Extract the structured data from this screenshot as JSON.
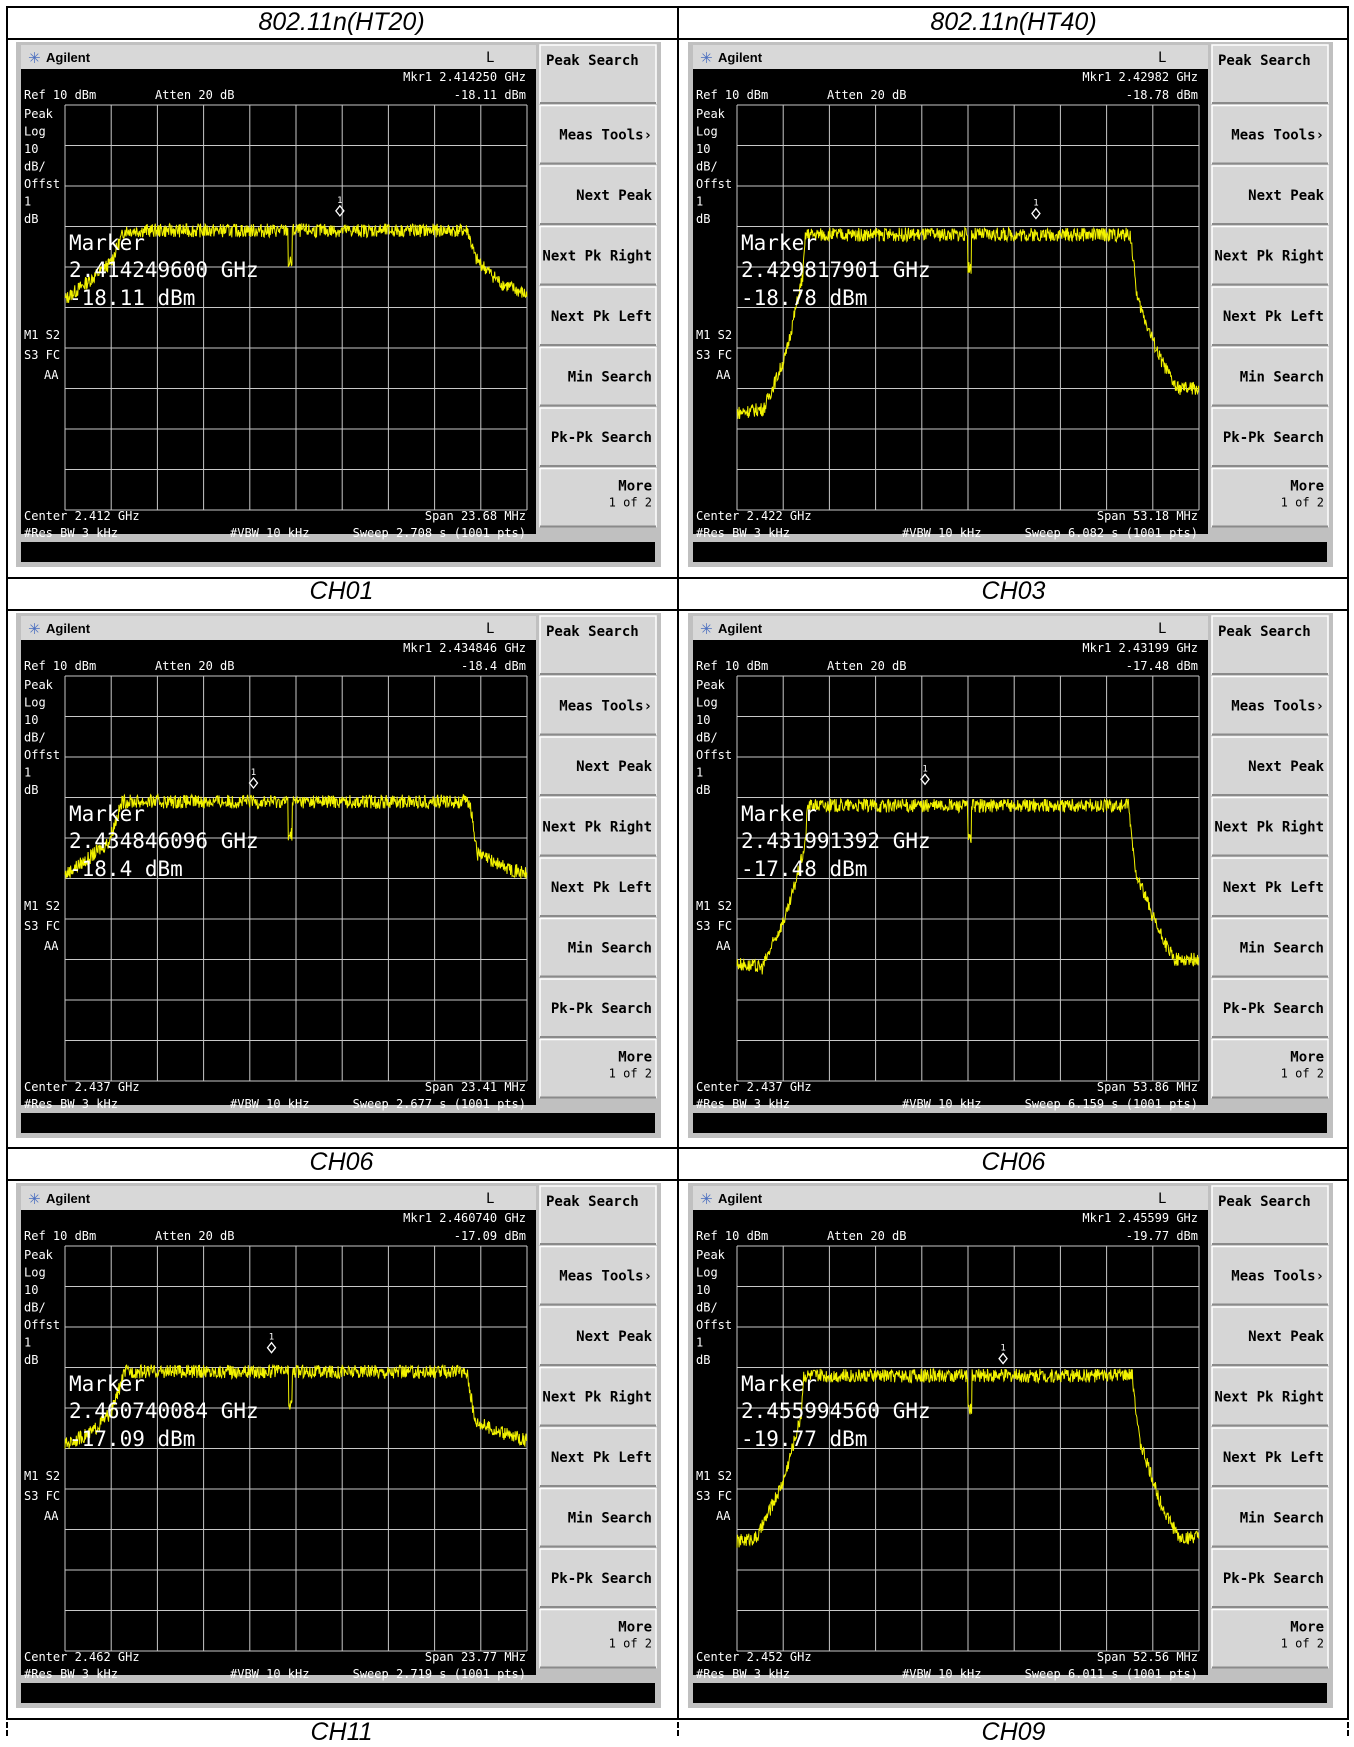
{
  "headers": [
    "802.11n(HT20)",
    "802.11n(HT40)"
  ],
  "panels": [
    {
      "brand": "Agilent",
      "l_flag": "L",
      "mkr_line1": "Mkr1  2.414250 GHz",
      "mkr_line2": "-18.11 dBm",
      "ref": "Ref 10 dBm",
      "atten": "Atten 20 dB",
      "left_labels": [
        "Peak",
        "Log",
        "10",
        "dB/",
        "Offst",
        "1",
        "dB"
      ],
      "mode_labels": [
        "M1  S2",
        "S3  FC",
        "AA"
      ],
      "marker_title": "Marker",
      "marker_freq": "2.414249600 GHz",
      "marker_level": "-18.11 dBm",
      "center": "Center 2.412 GHz",
      "span": "Span 23.68 MHz",
      "rbw": "#Res BW 3 kHz",
      "vbw": "#VBW 10 kHz",
      "sweep": "Sweep 2.708 s (1001 pts)",
      "softkeys": [
        "Peak Search",
        "Meas Tools›",
        "Next Peak",
        "Next Pk Right",
        "Next Pk Left",
        "Min Search",
        "Pk-Pk Search",
        "More"
      ],
      "more_sub": "1 of 2",
      "caption": "CH01"
    },
    {
      "brand": "Agilent",
      "l_flag": "L",
      "mkr_line1": "Mkr1  2.42982 GHz",
      "mkr_line2": "-18.78 dBm",
      "ref": "Ref 10 dBm",
      "atten": "Atten 20 dB",
      "left_labels": [
        "Peak",
        "Log",
        "10",
        "dB/",
        "Offst",
        "1",
        "dB"
      ],
      "mode_labels": [
        "M1  S2",
        "S3  FC",
        "AA"
      ],
      "marker_title": "Marker",
      "marker_freq": "2.429817901 GHz",
      "marker_level": "-18.78 dBm",
      "center": "Center 2.422 GHz",
      "span": "Span 53.18 MHz",
      "rbw": "#Res BW 3 kHz",
      "vbw": "#VBW 10 kHz",
      "sweep": "Sweep 6.082 s (1001 pts)",
      "softkeys": [
        "Peak Search",
        "Meas Tools›",
        "Next Peak",
        "Next Pk Right",
        "Next Pk Left",
        "Min Search",
        "Pk-Pk Search",
        "More"
      ],
      "more_sub": "1 of 2",
      "caption": "CH03"
    },
    {
      "brand": "Agilent",
      "l_flag": "L",
      "mkr_line1": "Mkr1  2.434846 GHz",
      "mkr_line2": "-18.4 dBm",
      "ref": "Ref 10 dBm",
      "atten": "Atten 20 dB",
      "left_labels": [
        "Peak",
        "Log",
        "10",
        "dB/",
        "Offst",
        "1",
        "dB"
      ],
      "mode_labels": [
        "M1  S2",
        "S3  FC",
        "AA"
      ],
      "marker_title": "Marker",
      "marker_freq": "2.434846096 GHz",
      "marker_level": "-18.4 dBm",
      "center": "Center 2.437 GHz",
      "span": "Span 23.41 MHz",
      "rbw": "#Res BW 3 kHz",
      "vbw": "#VBW 10 kHz",
      "sweep": "Sweep 2.677 s (1001 pts)",
      "softkeys": [
        "Peak Search",
        "Meas Tools›",
        "Next Peak",
        "Next Pk Right",
        "Next Pk Left",
        "Min Search",
        "Pk-Pk Search",
        "More"
      ],
      "more_sub": "1 of 2",
      "caption": "CH06"
    },
    {
      "brand": "Agilent",
      "l_flag": "L",
      "mkr_line1": "Mkr1  2.43199 GHz",
      "mkr_line2": "-17.48 dBm",
      "ref": "Ref 10 dBm",
      "atten": "Atten 20 dB",
      "left_labels": [
        "Peak",
        "Log",
        "10",
        "dB/",
        "Offst",
        "1",
        "dB"
      ],
      "mode_labels": [
        "M1  S2",
        "S3  FC",
        "AA"
      ],
      "marker_title": "Marker",
      "marker_freq": "2.431991392 GHz",
      "marker_level": "-17.48 dBm",
      "center": "Center 2.437 GHz",
      "span": "Span 53.86 MHz",
      "rbw": "#Res BW 3 kHz",
      "vbw": "#VBW 10 kHz",
      "sweep": "Sweep 6.159 s (1001 pts)",
      "softkeys": [
        "Peak Search",
        "Meas Tools›",
        "Next Peak",
        "Next Pk Right",
        "Next Pk Left",
        "Min Search",
        "Pk-Pk Search",
        "More"
      ],
      "more_sub": "1 of 2",
      "caption": "CH06"
    },
    {
      "brand": "Agilent",
      "l_flag": "L",
      "mkr_line1": "Mkr1  2.460740 GHz",
      "mkr_line2": "-17.09 dBm",
      "ref": "Ref 10 dBm",
      "atten": "Atten 20 dB",
      "left_labels": [
        "Peak",
        "Log",
        "10",
        "dB/",
        "Offst",
        "1",
        "dB"
      ],
      "mode_labels": [
        "M1  S2",
        "S3  FC",
        "AA"
      ],
      "marker_title": "Marker",
      "marker_freq": "2.460740084 GHz",
      "marker_level": "-17.09 dBm",
      "center": "Center 2.462 GHz",
      "span": "Span 23.77 MHz",
      "rbw": "#Res BW 3 kHz",
      "vbw": "#VBW 10 kHz",
      "sweep": "Sweep 2.719 s (1001 pts)",
      "softkeys": [
        "Peak Search",
        "Meas Tools›",
        "Next Peak",
        "Next Pk Right",
        "Next Pk Left",
        "Min Search",
        "Pk-Pk Search",
        "More"
      ],
      "more_sub": "1 of 2",
      "caption": "CH11"
    },
    {
      "brand": "Agilent",
      "l_flag": "L",
      "mkr_line1": "Mkr1  2.45599 GHz",
      "mkr_line2": "-19.77 dBm",
      "ref": "Ref 10 dBm",
      "atten": "Atten 20 dB",
      "left_labels": [
        "Peak",
        "Log",
        "10",
        "dB/",
        "Offst",
        "1",
        "dB"
      ],
      "mode_labels": [
        "M1  S2",
        "S3  FC",
        "AA"
      ],
      "marker_title": "Marker",
      "marker_freq": "2.455994560 GHz",
      "marker_level": "-19.77 dBm",
      "center": "Center 2.452 GHz",
      "span": "Span 52.56 MHz",
      "rbw": "#Res BW 3 kHz",
      "vbw": "#VBW 10 kHz",
      "sweep": "Sweep 6.011 s (1001 pts)",
      "softkeys": [
        "Peak Search",
        "Meas Tools›",
        "Next Peak",
        "Next Pk Right",
        "Next Pk Left",
        "Min Search",
        "Pk-Pk Search",
        "More"
      ],
      "more_sub": "1 of 2",
      "caption": "CH09"
    }
  ],
  "colors": {
    "trace": "#f2f200",
    "screen": "#000000",
    "grid": "#c8c8c8",
    "softkey": "#d6d6d6",
    "frame": "#c0c0c0"
  },
  "chart_data": [
    {
      "type": "line",
      "marker_id": "1",
      "x_center_ghz": 2.412,
      "x_span_mhz": 23.68,
      "ref_level_dbm": 10,
      "y_scale_db_per_div": 10,
      "y_divisions": 10,
      "x_divisions": 10,
      "marker": {
        "x_ghz": 2.41425,
        "y_dbm": -18.11
      },
      "envelope": {
        "x_mhz_offset": [
          -11.84,
          -10.5,
          -9.5,
          -8.8,
          8.8,
          9.2,
          10.5,
          11.84
        ],
        "y_dbm": [
          -38,
          -33,
          -29,
          -21,
          -21,
          -28,
          -34,
          -37
        ]
      },
      "notch_mhz_offset": -0.3
    },
    {
      "type": "line",
      "marker_id": "1",
      "x_center_ghz": 2.422,
      "x_span_mhz": 53.18,
      "ref_level_dbm": 10,
      "y_scale_db_per_div": 10,
      "y_divisions": 10,
      "x_divisions": 10,
      "marker": {
        "x_ghz": 2.42982,
        "y_dbm": -18.78
      },
      "envelope": {
        "x_mhz_offset": [
          -26.59,
          -23.5,
          -21,
          -19,
          -18.7,
          18.7,
          19.5,
          22,
          24,
          26.59
        ],
        "y_dbm": [
          -66,
          -65,
          -52,
          -32,
          -22,
          -22,
          -38,
          -52,
          -60,
          -60
        ]
      },
      "notch_mhz_offset": 0.2
    },
    {
      "type": "line",
      "marker_id": "1",
      "x_center_ghz": 2.437,
      "x_span_mhz": 23.41,
      "ref_level_dbm": 10,
      "y_scale_db_per_div": 10,
      "y_divisions": 10,
      "x_divisions": 10,
      "marker": {
        "x_ghz": 2.434846,
        "y_dbm": -18.4
      },
      "envelope": {
        "x_mhz_offset": [
          -11.7,
          -10.5,
          -9.5,
          -8.8,
          8.8,
          9.2,
          10.5,
          11.7
        ],
        "y_dbm": [
          -39,
          -35,
          -31,
          -21,
          -21,
          -34,
          -37,
          -39
        ]
      },
      "notch_mhz_offset": -0.3
    },
    {
      "type": "line",
      "marker_id": "1",
      "x_center_ghz": 2.437,
      "x_span_mhz": 53.86,
      "ref_level_dbm": 10,
      "y_scale_db_per_div": 10,
      "y_divisions": 10,
      "x_divisions": 10,
      "marker": {
        "x_ghz": 2.43199,
        "y_dbm": -17.48
      },
      "envelope": {
        "x_mhz_offset": [
          -26.93,
          -24,
          -21,
          -19,
          -18.7,
          18.7,
          19.5,
          22,
          24,
          26.93
        ],
        "y_dbm": [
          -61,
          -62,
          -48,
          -32,
          -22,
          -22,
          -38,
          -52,
          -60,
          -60
        ]
      },
      "notch_mhz_offset": 0.2
    },
    {
      "type": "line",
      "marker_id": "1",
      "x_center_ghz": 2.462,
      "x_span_mhz": 23.77,
      "ref_level_dbm": 10,
      "y_scale_db_per_div": 10,
      "y_divisions": 10,
      "x_divisions": 10,
      "marker": {
        "x_ghz": 2.46074,
        "y_dbm": -17.09
      },
      "envelope": {
        "x_mhz_offset": [
          -11.88,
          -10.5,
          -9.5,
          -8.8,
          8.8,
          9.2,
          10.5,
          11.88
        ],
        "y_dbm": [
          -39,
          -36,
          -31,
          -21,
          -21,
          -33,
          -36,
          -38
        ]
      },
      "notch_mhz_offset": -0.3
    },
    {
      "type": "line",
      "marker_id": "1",
      "x_center_ghz": 2.452,
      "x_span_mhz": 52.56,
      "ref_level_dbm": 10,
      "y_scale_db_per_div": 10,
      "y_divisions": 10,
      "x_divisions": 10,
      "marker": {
        "x_ghz": 2.45599,
        "y_dbm": -19.77
      },
      "envelope": {
        "x_mhz_offset": [
          -26.28,
          -24,
          -21,
          -19,
          -18.7,
          18.7,
          19.5,
          22,
          24,
          26.28
        ],
        "y_dbm": [
          -63,
          -62,
          -48,
          -32,
          -22,
          -22,
          -38,
          -54,
          -62,
          -62
        ]
      },
      "notch_mhz_offset": 0.2
    }
  ]
}
